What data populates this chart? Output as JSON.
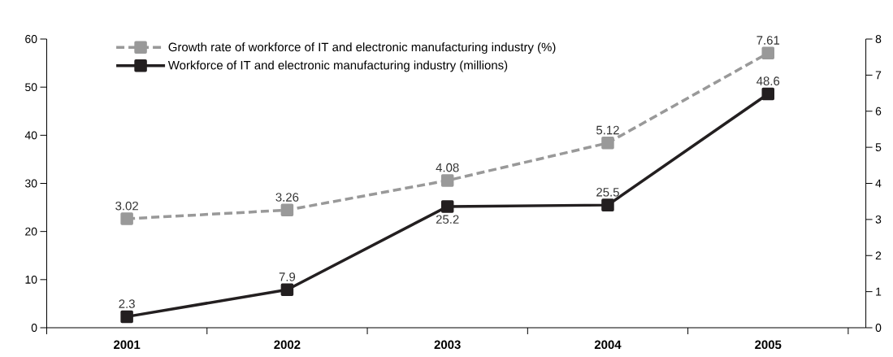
{
  "chart_data": {
    "type": "line",
    "categories": [
      "2001",
      "2002",
      "2003",
      "2004",
      "2005"
    ],
    "series": [
      {
        "name": "Growth rate of workforce of IT and electronic  manufacturing industry (%)",
        "color": "#999999",
        "line_style": "dashed",
        "axis": "y2",
        "values": [
          3.02,
          3.26,
          4.08,
          5.12,
          7.61
        ]
      },
      {
        "name": "Workforce of IT and electronic manufacturing industry (millions)",
        "color": "#231f20",
        "line_style": "solid",
        "values": [
          2.3,
          7.9,
          25.2,
          25.5,
          48.6
        ]
      }
    ],
    "ylim": [
      0,
      60
    ],
    "yticks": [
      0,
      10,
      20,
      30,
      40,
      50,
      60
    ],
    "y2lim": [
      0,
      8
    ],
    "y2ticks": [
      0,
      1,
      2,
      3,
      4,
      5,
      6,
      7,
      8
    ],
    "marker": "square",
    "legend": "top left",
    "data_labels": true,
    "grid": false
  }
}
